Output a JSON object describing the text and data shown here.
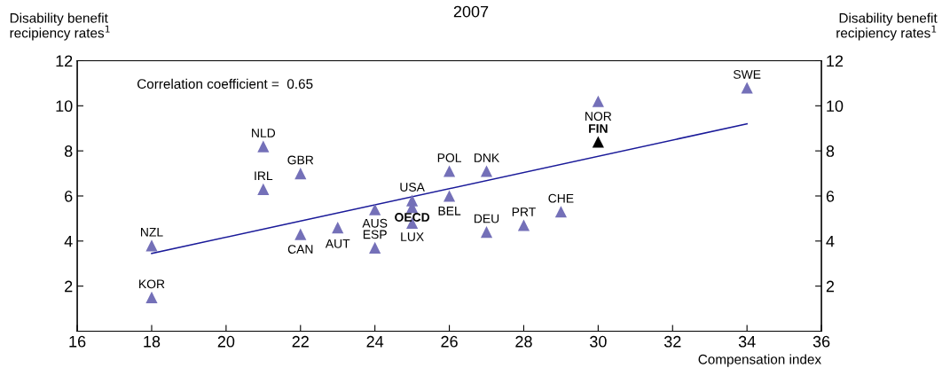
{
  "chart_data": {
    "type": "scatter",
    "title": "2007",
    "xlabel": "Compensation index",
    "ylabel": "Disability benefit\nrecipiency rates$^{1}$",
    "y2label": "Disability benefit\nrecipiency rates$^{1}$",
    "xlim": [
      16,
      36
    ],
    "xticks": [
      16,
      18,
      20,
      22,
      24,
      26,
      28,
      30,
      32,
      34,
      36
    ],
    "ylim": [
      0,
      12
    ],
    "yticks": [
      2,
      4,
      6,
      8,
      10,
      12
    ],
    "y2lim": [
      0,
      12
    ],
    "y2ticks": [
      2,
      4,
      6,
      8,
      10,
      12
    ],
    "marker": "triangle",
    "grid": false,
    "legend": false,
    "series": [
      {
        "color": "#7470b8",
        "x": [
          18,
          18,
          21,
          21,
          22,
          22,
          23,
          24,
          24,
          25,
          25,
          25,
          26,
          26,
          27,
          27,
          28,
          29,
          30,
          34
        ],
        "values": [
          3.8,
          1.5,
          8.2,
          6.3,
          7.0,
          4.3,
          4.6,
          5.4,
          3.7,
          5.8,
          5.5,
          4.8,
          7.1,
          6.0,
          7.1,
          4.4,
          4.7,
          5.3,
          10.2,
          10.8
        ]
      },
      {
        "color": "#000000",
        "x": [
          30
        ],
        "values": [
          8.4
        ]
      },
      {
        "type": "line",
        "color": "#1a1a99",
        "marker": "none",
        "x": [
          18,
          34
        ],
        "values": [
          3.45,
          9.2
        ]
      }
    ],
    "annotations": [
      "Correlation coefficient =  0.65",
      {
        "text": "NZL",
        "x": 18,
        "y": 3.8
      },
      {
        "text": "KOR",
        "x": 18,
        "y": 1.5
      },
      {
        "text": "NLD",
        "x": 21,
        "y": 8.2
      },
      {
        "text": "IRL",
        "x": 21,
        "y": 6.3
      },
      {
        "text": "GBR",
        "x": 22,
        "y": 7.0
      },
      {
        "text": "CAN",
        "x": 22,
        "y": 4.3
      },
      {
        "text": "AUT",
        "x": 23,
        "y": 4.6
      },
      {
        "text": "AUS",
        "x": 24,
        "y": 5.4
      },
      {
        "text": "ESP",
        "x": 24,
        "y": 3.7
      },
      {
        "text": "USA",
        "x": 25,
        "y": 5.8
      },
      {
        "text": "OECD",
        "x": 25,
        "y": 5.5
      },
      {
        "text": "LUX",
        "x": 25,
        "y": 4.8
      },
      {
        "text": "POL",
        "x": 26,
        "y": 7.1
      },
      {
        "text": "BEL",
        "x": 26,
        "y": 6.0
      },
      {
        "text": "DNK",
        "x": 27,
        "y": 7.1
      },
      {
        "text": "DEU",
        "x": 27,
        "y": 4.4
      },
      {
        "text": "PRT",
        "x": 28,
        "y": 4.7
      },
      {
        "text": "CHE",
        "x": 29,
        "y": 5.3
      },
      {
        "text": "NOR",
        "x": 30,
        "y": 10.2
      },
      {
        "text": "FIN",
        "x": 30,
        "y": 8.4
      },
      {
        "text": "SWE",
        "x": 34,
        "y": 10.8
      }
    ]
  }
}
